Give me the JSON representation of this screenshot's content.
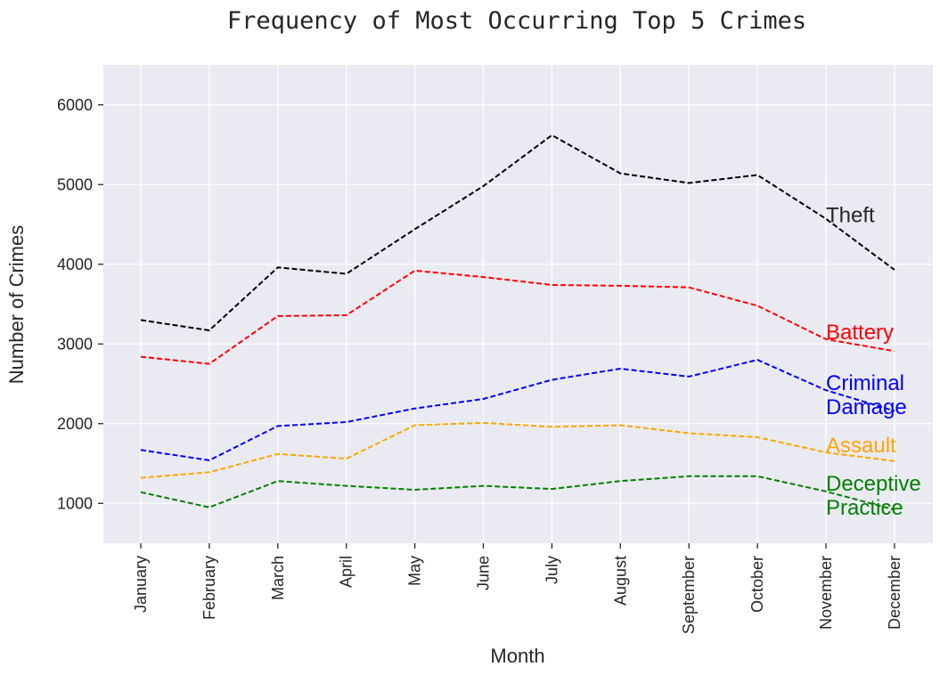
{
  "chart_data": {
    "type": "line",
    "title": "Frequency of Most Occurring Top 5 Crimes",
    "xlabel": "Month",
    "ylabel": "Number of Crimes",
    "categories": [
      "January",
      "February",
      "March",
      "April",
      "May",
      "June",
      "July",
      "August",
      "September",
      "October",
      "November",
      "December"
    ],
    "ylim": [
      500,
      6500
    ],
    "yticks": [
      "1000",
      "2000",
      "3000",
      "4000",
      "5000",
      "6000"
    ],
    "grid": true,
    "line_style": "dashed",
    "background_color": "#eaeaf2",
    "series": [
      {
        "name": "Theft",
        "label_lines": [
          "Theft"
        ],
        "color": "#000000",
        "label_color": "#262626",
        "values": [
          3300,
          3170,
          3960,
          3880,
          4440,
          4980,
          5620,
          5140,
          5020,
          5120,
          4570,
          3930
        ]
      },
      {
        "name": "Battery",
        "label_lines": [
          "Battery"
        ],
        "color": "#ff0000",
        "label_color": "#ff0000",
        "values": [
          2840,
          2750,
          3350,
          3360,
          3920,
          3840,
          3740,
          3730,
          3710,
          3480,
          3060,
          2910
        ]
      },
      {
        "name": "Criminal Damage",
        "label_lines": [
          "Criminal",
          "Damage"
        ],
        "color": "#0000ff",
        "label_color": "#0000ff",
        "values": [
          1670,
          1540,
          1970,
          2020,
          2190,
          2310,
          2550,
          2690,
          2590,
          2800,
          2420,
          2160
        ]
      },
      {
        "name": "Assault",
        "label_lines": [
          "Assault"
        ],
        "color": "#ffa500",
        "label_color": "#ffa500",
        "values": [
          1320,
          1390,
          1620,
          1560,
          1980,
          2010,
          1960,
          1980,
          1880,
          1830,
          1640,
          1530
        ]
      },
      {
        "name": "Deceptive Practice",
        "label_lines": [
          "Deceptive",
          "Practice"
        ],
        "color": "#008000",
        "label_color": "#008000",
        "values": [
          1140,
          950,
          1280,
          1220,
          1170,
          1220,
          1180,
          1280,
          1340,
          1340,
          1150,
          920
        ]
      }
    ]
  }
}
